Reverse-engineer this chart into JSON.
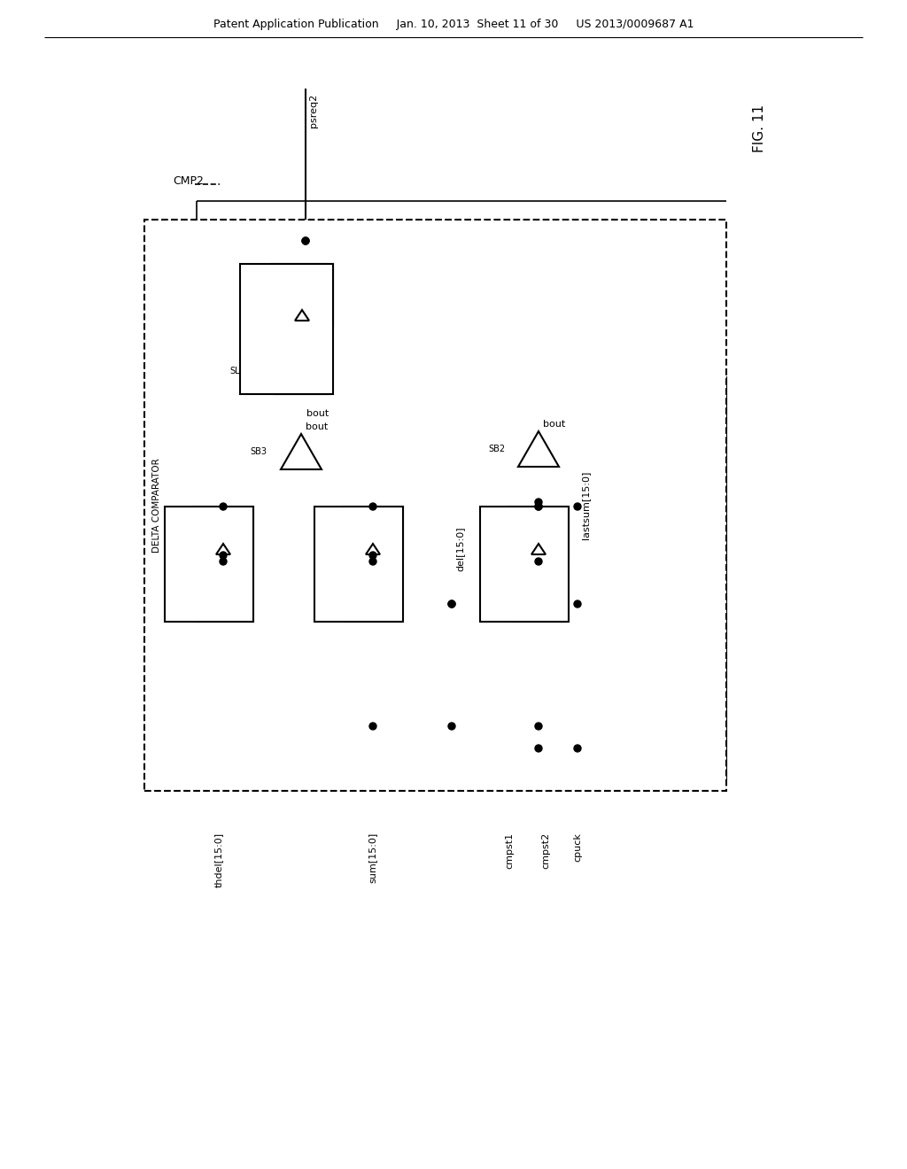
{
  "header": "Patent Application Publication     Jan. 10, 2013  Sheet 11 of 30     US 2013/0009687 A1",
  "fig_label": "FIG. 11",
  "cmp_label": "CMP2",
  "block_label": "DELTA COMPARATOR",
  "background": "#ffffff"
}
